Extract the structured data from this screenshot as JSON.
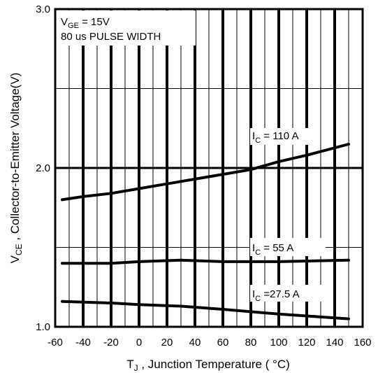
{
  "chart_data": {
    "type": "line",
    "xlabel_main": "T",
    "xlabel_sub": "J",
    "xlabel_rest": " , Junction Temperature ( °C)",
    "ylabel_main": "V",
    "ylabel_sub": "CE",
    "ylabel_rest": " ,  Collector-to-Emitter Voltage(V)",
    "xlim": [
      -60,
      160
    ],
    "ylim": [
      1.0,
      3.0
    ],
    "x_ticks": [
      "-60",
      "-40",
      "-20",
      "0",
      "20",
      "40",
      "60",
      "80",
      "100",
      "120",
      "140",
      "160"
    ],
    "y_ticks": [
      "1.0",
      "2.0",
      "3.0"
    ],
    "annotation": {
      "line1_main": "V",
      "line1_sub": "GE",
      "line1_rest": "  = 15V",
      "line2": "80 us PULSE WIDTH"
    },
    "series": [
      {
        "name": "IC = 110A",
        "label_main": "I",
        "label_sub": "C",
        "label_rest": " = 110 A",
        "x": [
          -55,
          -40,
          -20,
          0,
          20,
          40,
          60,
          80,
          100,
          120,
          150
        ],
        "y": [
          1.8,
          1.82,
          1.84,
          1.87,
          1.9,
          1.93,
          1.96,
          1.99,
          2.04,
          2.08,
          2.15
        ]
      },
      {
        "name": "IC = 55A",
        "label_main": "I",
        "label_sub": "C",
        "label_rest": " =   55 A",
        "x": [
          -55,
          -20,
          0,
          30,
          60,
          100,
          150
        ],
        "y": [
          1.4,
          1.4,
          1.41,
          1.42,
          1.41,
          1.41,
          1.42
        ]
      },
      {
        "name": "IC = 27.5A",
        "label_main": "I",
        "label_sub": "C",
        "label_rest": " =27.5 A",
        "x": [
          -55,
          -20,
          0,
          30,
          60,
          100,
          150
        ],
        "y": [
          1.16,
          1.15,
          1.14,
          1.13,
          1.11,
          1.08,
          1.05
        ]
      }
    ]
  }
}
